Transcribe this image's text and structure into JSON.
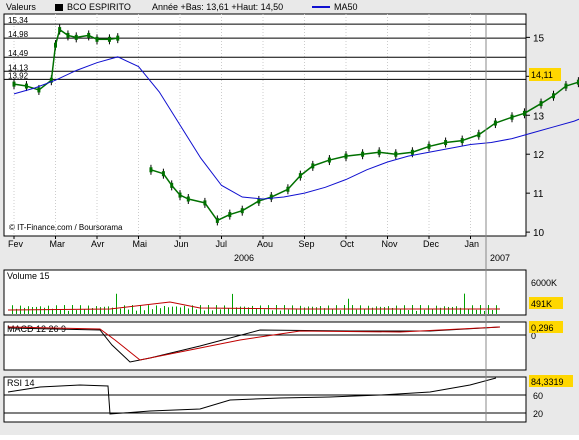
{
  "header": {
    "label": "Valeurs",
    "ticker": "BCO ESPIRITO",
    "stats": "Année +Bas: 13,61 +Haut: 14,50",
    "ma_label": "MA50"
  },
  "watermark": "© IT-Finance.com / Boursorama",
  "colors": {
    "price": "#007000",
    "ma": "#1010d0",
    "volume": "#00a000",
    "volume_ma": "#c00000",
    "macd": "#000000",
    "signal": "#c00000",
    "rsi": "#000000",
    "badge": "#ffd700"
  },
  "chart_data": [
    {
      "type": "candlestick",
      "name": "price",
      "x_months": [
        "Fev",
        "Mar",
        "Avr",
        "Mai",
        "Jun",
        "Jul",
        "Aou",
        "Sep",
        "Oct",
        "Nov",
        "Dec",
        "Jan"
      ],
      "year_labels": [
        "2006",
        "2007"
      ],
      "ylim": [
        9.9,
        15.6
      ],
      "y_ticks": [
        10,
        11,
        12,
        13,
        14,
        15
      ],
      "y_tick_labels": [
        "10",
        "11",
        "12",
        "13",
        "14",
        "15"
      ],
      "level_lines": [
        15.34,
        14.98,
        14.49,
        14.13,
        13.92
      ],
      "level_labels": [
        "15,34",
        "14,98",
        "14,49",
        "14,13",
        "13,92"
      ],
      "last_value": 14.11,
      "last_label": "14,11",
      "close": [
        [
          0,
          13.8
        ],
        [
          0.3,
          13.75
        ],
        [
          0.6,
          13.65
        ],
        [
          0.9,
          13.9
        ],
        [
          1.0,
          14.8
        ],
        [
          1.1,
          15.2
        ],
        [
          1.3,
          15.05
        ],
        [
          1.5,
          15.0
        ],
        [
          1.8,
          15.05
        ],
        [
          2.0,
          14.95
        ],
        [
          2.3,
          14.95
        ],
        [
          2.5,
          14.98
        ],
        [
          3.3,
          11.6
        ],
        [
          3.6,
          11.5
        ],
        [
          3.8,
          11.2
        ],
        [
          4.0,
          10.95
        ],
        [
          4.2,
          10.85
        ],
        [
          4.6,
          10.75
        ],
        [
          4.9,
          10.3
        ],
        [
          5.2,
          10.45
        ],
        [
          5.5,
          10.55
        ],
        [
          5.9,
          10.8
        ],
        [
          6.2,
          10.9
        ],
        [
          6.6,
          11.1
        ],
        [
          6.9,
          11.45
        ],
        [
          7.2,
          11.7
        ],
        [
          7.6,
          11.85
        ],
        [
          8.0,
          11.95
        ],
        [
          8.4,
          12.0
        ],
        [
          8.8,
          12.05
        ],
        [
          9.2,
          12.0
        ],
        [
          9.6,
          12.05
        ],
        [
          10.0,
          12.2
        ],
        [
          10.4,
          12.3
        ],
        [
          10.8,
          12.35
        ],
        [
          11.2,
          12.5
        ],
        [
          11.6,
          12.8
        ],
        [
          12.0,
          12.95
        ],
        [
          12.3,
          13.05
        ],
        [
          12.7,
          13.3
        ],
        [
          13.0,
          13.5
        ],
        [
          13.3,
          13.75
        ],
        [
          13.6,
          13.85
        ],
        [
          13.85,
          14.1
        ]
      ],
      "ma50": [
        [
          0,
          13.55
        ],
        [
          0.5,
          13.7
        ],
        [
          1.0,
          13.9
        ],
        [
          1.5,
          14.15
        ],
        [
          2.0,
          14.35
        ],
        [
          2.5,
          14.5
        ],
        [
          3.0,
          14.25
        ],
        [
          3.5,
          13.6
        ],
        [
          4.0,
          12.75
        ],
        [
          4.5,
          11.9
        ],
        [
          5.0,
          11.2
        ],
        [
          5.5,
          10.9
        ],
        [
          6.0,
          10.85
        ],
        [
          6.5,
          10.9
        ],
        [
          7.0,
          11.0
        ],
        [
          7.5,
          11.15
        ],
        [
          8.0,
          11.35
        ],
        [
          8.5,
          11.6
        ],
        [
          9.0,
          11.8
        ],
        [
          9.5,
          11.95
        ],
        [
          10.0,
          12.05
        ],
        [
          10.5,
          12.15
        ],
        [
          11.0,
          12.25
        ],
        [
          11.5,
          12.3
        ],
        [
          12.0,
          12.4
        ],
        [
          12.5,
          12.55
        ],
        [
          13.0,
          12.7
        ],
        [
          13.5,
          12.85
        ],
        [
          13.85,
          13.0
        ]
      ]
    },
    {
      "type": "bar",
      "name": "volume",
      "title": "Volume 15",
      "y_tick_labels": [
        "6000K"
      ],
      "last_label": "491K"
    },
    {
      "type": "line",
      "name": "macd",
      "title": "MACD 12 26 9",
      "y_tick_labels": [
        "0"
      ],
      "last_label": "0,296"
    },
    {
      "type": "line",
      "name": "rsi",
      "title": "RSI 14",
      "ylim": [
        0,
        100
      ],
      "y_ticks": [
        20,
        60
      ],
      "y_tick_labels": [
        "20",
        "60"
      ],
      "last_value": 84.3319,
      "last_label": "84,3319"
    }
  ]
}
